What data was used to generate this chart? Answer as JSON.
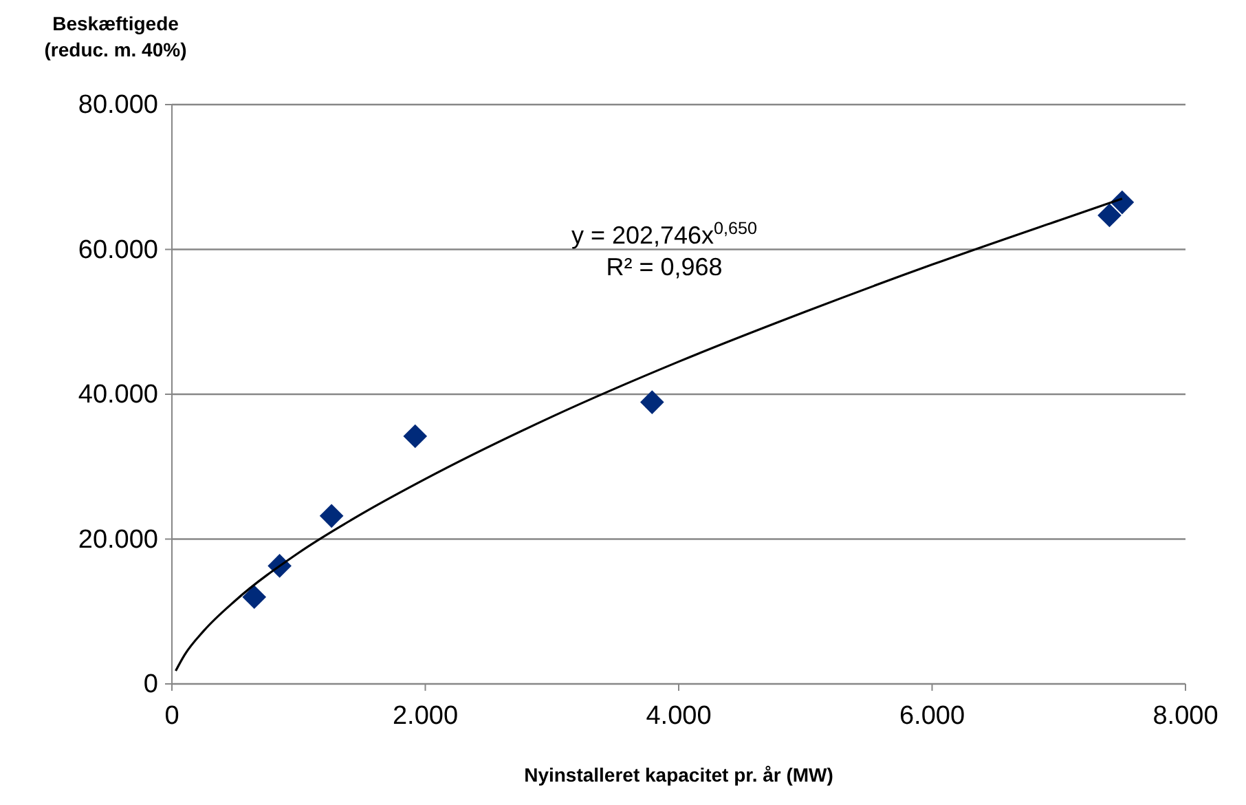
{
  "chart_data": {
    "type": "scatter",
    "xlabel": "Nyinstalleret kapacitet  pr. år  (MW)",
    "ylabel": "Beskæftigede\n(reduc. m. 40%)",
    "xlim": [
      0,
      8000
    ],
    "ylim": [
      0,
      80000
    ],
    "xticks": [
      {
        "value": 0,
        "label": "0"
      },
      {
        "value": 2000,
        "label": "2.000"
      },
      {
        "value": 4000,
        "label": "4.000"
      },
      {
        "value": 6000,
        "label": "6.000"
      },
      {
        "value": 8000,
        "label": "8.000"
      }
    ],
    "yticks": [
      {
        "value": 0,
        "label": "0"
      },
      {
        "value": 20000,
        "label": "20.000"
      },
      {
        "value": 40000,
        "label": "40.000"
      },
      {
        "value": 60000,
        "label": "60.000"
      },
      {
        "value": 80000,
        "label": "80.000"
      }
    ],
    "grid": "y",
    "series": [
      {
        "color": "#002a7a",
        "marker": "diamond",
        "x": [
          650,
          850,
          1260,
          1920,
          3790,
          7400,
          7500
        ],
        "values": [
          12000,
          16300,
          23200,
          34200,
          38900,
          64700,
          66500
        ]
      },
      {
        "type": "line",
        "color": "#000000",
        "marker": "none",
        "x": [
          30,
          100,
          250,
          500,
          1000,
          1500,
          2000,
          3000,
          4000,
          5000,
          6000,
          7000,
          7500
        ],
        "values": [
          1800,
          4000,
          7300,
          11500,
          18100,
          23500,
          28300,
          36900,
          44500,
          51400,
          57900,
          64000,
          67000
        ]
      }
    ],
    "annotations": [
      "y = 202,746x$^{0,650}$",
      "R² = 0,968"
    ]
  }
}
